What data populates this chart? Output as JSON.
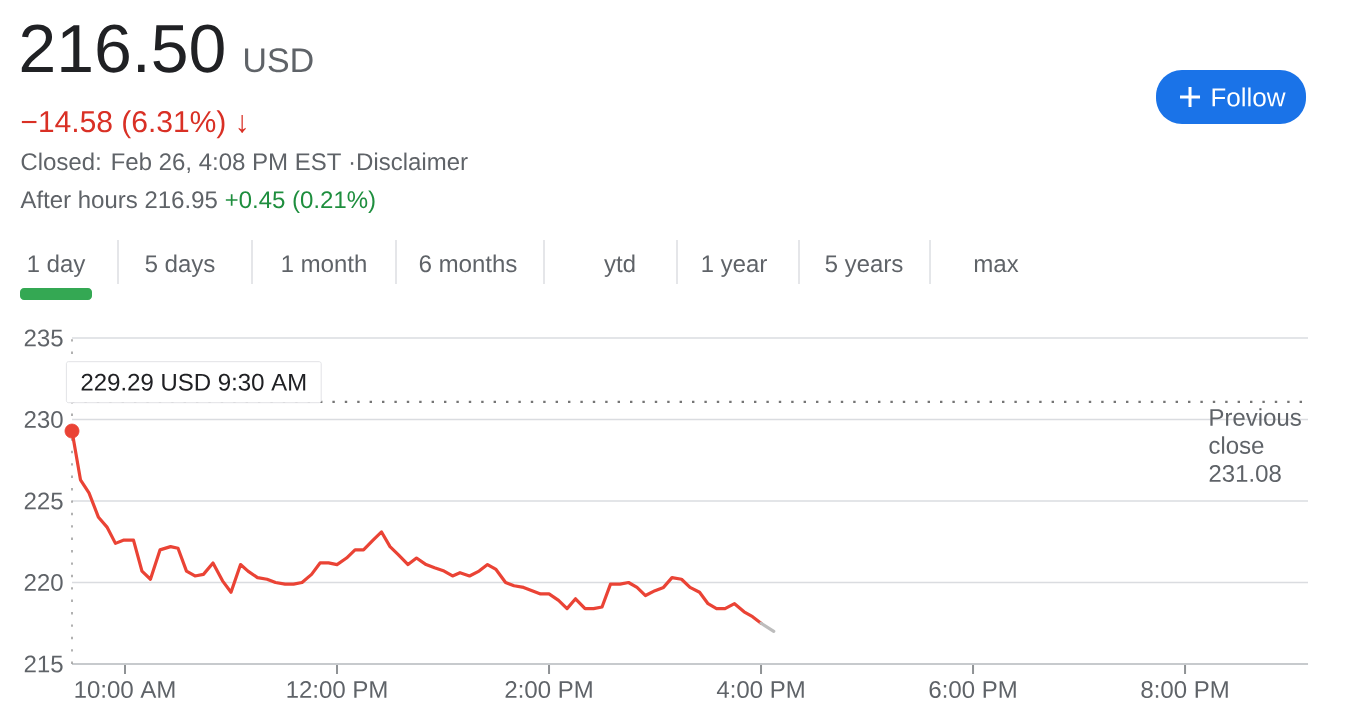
{
  "chart_data": {
    "type": "line",
    "title": "216.50",
    "subtitle": "USD",
    "annotations": [
      "−14.58 (6.31%) ↓",
      "Closed: Feb 26, 4:08 PM EST ·Disclaimer",
      "After hours 216.95",
      "+0.45 (0.21%)",
      "Follow",
      "1 day",
      "5 days",
      "1 month",
      "6 months",
      "ytd",
      "1 year",
      "5 years",
      "max",
      {
        "text": "229.29 USD  9:30 AM",
        "x": 9.5,
        "y": 229.29
      }
    ],
    "series": [
      {
        "color": "#ea4335",
        "x": [
          9.5,
          9.58,
          9.66,
          9.75,
          9.83,
          9.91,
          9.99,
          10.08,
          10.16,
          10.24,
          10.33,
          10.43,
          10.5,
          10.58,
          10.66,
          10.74,
          10.83,
          10.92,
          11.0,
          11.09,
          11.16,
          11.25,
          11.34,
          11.42,
          11.51,
          11.59,
          11.67,
          11.76,
          11.84,
          11.92,
          12.0,
          12.09,
          12.17,
          12.25,
          12.34,
          12.42,
          12.5,
          12.58,
          12.67,
          12.75,
          12.84,
          12.92,
          13.01,
          13.09,
          13.16,
          13.25,
          13.34,
          13.42,
          13.5,
          13.59,
          13.67,
          13.76,
          13.84,
          13.92,
          14.0,
          14.09,
          14.17,
          14.25,
          14.34,
          14.42,
          14.5,
          14.58,
          14.67,
          14.75,
          14.83,
          14.91,
          15.0,
          15.08,
          15.16,
          15.25,
          15.33,
          15.42,
          15.5,
          15.58,
          15.66,
          15.75,
          15.84,
          15.92,
          16.0
        ],
        "values": [
          229.29,
          226.3,
          225.5,
          224.0,
          223.4,
          222.4,
          222.6,
          222.6,
          220.7,
          220.2,
          222.0,
          222.2,
          222.1,
          220.7,
          220.4,
          220.5,
          221.2,
          220.1,
          219.4,
          221.1,
          220.7,
          220.3,
          220.2,
          220.0,
          219.9,
          219.9,
          220.0,
          220.5,
          221.2,
          221.2,
          221.1,
          221.5,
          222.0,
          222.0,
          222.6,
          223.1,
          222.2,
          221.7,
          221.1,
          221.5,
          221.1,
          220.9,
          220.7,
          220.4,
          220.6,
          220.4,
          220.7,
          221.1,
          220.8,
          220.0,
          219.8,
          219.7,
          219.5,
          219.3,
          219.3,
          218.9,
          218.4,
          219.0,
          218.4,
          218.4,
          218.5,
          219.9,
          219.9,
          220.0,
          219.7,
          219.2,
          219.5,
          219.7,
          220.3,
          220.2,
          219.7,
          219.4,
          218.7,
          218.4,
          218.4,
          218.7,
          218.2,
          217.9,
          217.5
        ]
      },
      {
        "color": "#bdbdbd",
        "x": [
          16.0,
          16.12
        ],
        "values": [
          217.5,
          217.0
        ]
      },
      {
        "type": "scatter",
        "marker": "circle",
        "color": "#ea4335",
        "x": [
          9.5
        ],
        "values": [
          229.29
        ]
      }
    ],
    "xlim": [
      9.5,
      21.16
    ],
    "ylim": [
      215,
      235
    ],
    "xticks": [
      {
        "value": 10,
        "label": "10:00 AM"
      },
      {
        "value": 12,
        "label": "12:00 PM"
      },
      {
        "value": 14,
        "label": "2:00 PM"
      },
      {
        "value": 16,
        "label": "4:00 PM"
      },
      {
        "value": 18,
        "label": "6:00 PM"
      },
      {
        "value": 20,
        "label": "8:00 PM"
      }
    ],
    "yticks": [
      215,
      220,
      225,
      230,
      235
    ],
    "grid": "y",
    "ref_lines": [
      {
        "axis": "y",
        "value": 231.08,
        "label": "Previous close 231.08",
        "line_style": "dotted",
        "color": "#757575"
      },
      {
        "axis": "x",
        "value": 9.5,
        "line_style": "dotted",
        "color": "#9e9e9e"
      }
    ]
  }
}
